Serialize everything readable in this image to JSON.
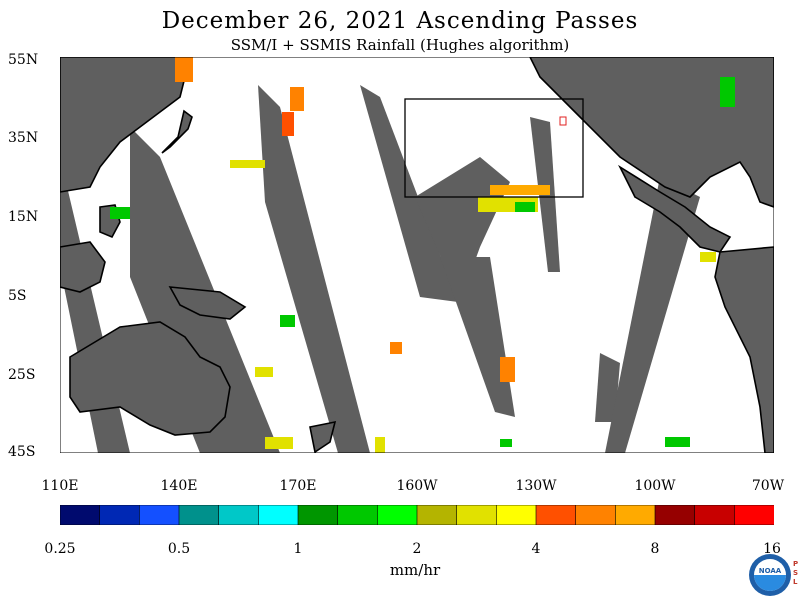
{
  "title": "December 26, 2021  Ascending Passes",
  "subtitle": "SSM/I + SSMIS Rainfall (Hughes algorithm)",
  "map": {
    "lat_labels": [
      "55N",
      "35N",
      "15N",
      "5S",
      "25S",
      "45S"
    ],
    "lon_labels": [
      "110E",
      "140E",
      "170E",
      "160W",
      "130W",
      "100W",
      "70W"
    ],
    "colors": {
      "land": "#5f5f5f",
      "ocean": "#ffffff",
      "gap": "#5f5f5f",
      "coast": "#000000",
      "box": "#000000",
      "marker": "#e02020"
    }
  },
  "colorbar": {
    "colors": [
      "#000a6e",
      "#0028b4",
      "#1450ff",
      "#00918c",
      "#00c8c8",
      "#00ffff",
      "#009600",
      "#00c800",
      "#00ff00",
      "#b4b400",
      "#e1e100",
      "#ffff00",
      "#ff5000",
      "#ff8200",
      "#ffaa00",
      "#960000",
      "#c80000",
      "#ff0000"
    ],
    "tick_labels": [
      "0.25",
      "0.5",
      "1",
      "2",
      "4",
      "8",
      "16"
    ],
    "units": "mm/hr"
  },
  "logo": {
    "text": "NOAA",
    "side_text": [
      "P",
      "S",
      "L"
    ]
  }
}
